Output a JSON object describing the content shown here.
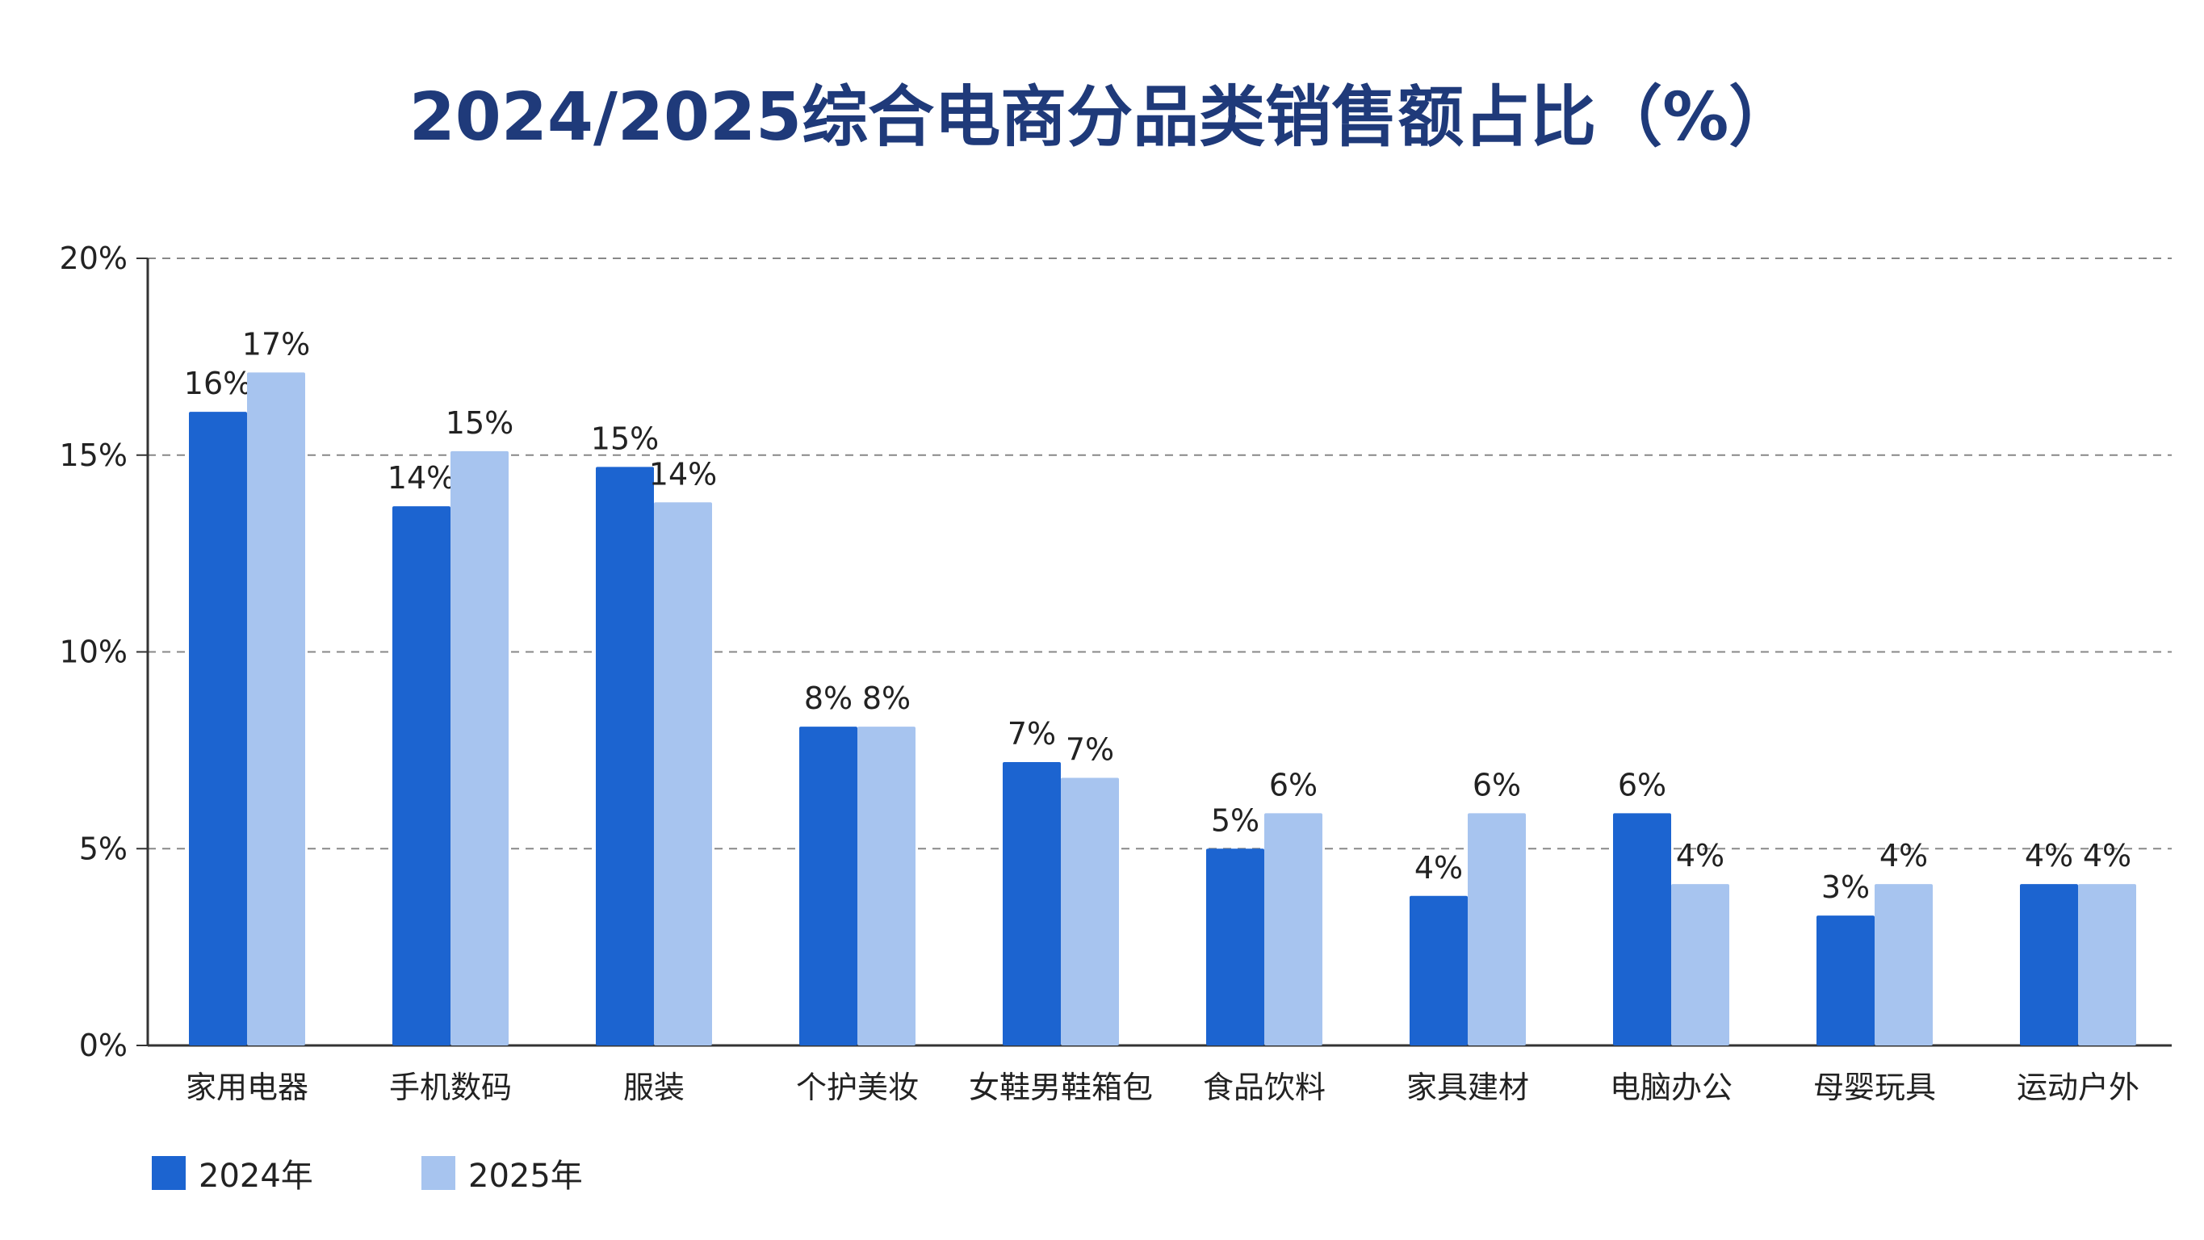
{
  "chart_data": {
    "type": "bar",
    "title": "2024/2025综合电商分品类销售额占比（%）",
    "categories": [
      "家用电器",
      "手机数码",
      "服装",
      "个护美妆",
      "女鞋男鞋箱包",
      "食品饮料",
      "家具建材",
      "电脑办公",
      "母婴玩具",
      "运动户外"
    ],
    "series": [
      {
        "name": "2024年",
        "color": "#1c64d0",
        "values": [
          16.1,
          13.7,
          14.7,
          8.1,
          7.2,
          5.0,
          3.8,
          5.9,
          3.3,
          4.1
        ],
        "labels": [
          "16%",
          "14%",
          "15%",
          "8%",
          "7%",
          "5%",
          "4%",
          "6%",
          "3%",
          "4%"
        ]
      },
      {
        "name": "2025年",
        "color": "#a7c4ef",
        "values": [
          17.1,
          15.1,
          13.8,
          8.1,
          6.8,
          5.9,
          5.9,
          4.1,
          4.1,
          4.1
        ],
        "labels": [
          "17%",
          "15%",
          "14%",
          "8%",
          "7%",
          "6%",
          "6%",
          "4%",
          "4%",
          "4%"
        ]
      }
    ],
    "ylim": [
      0,
      20
    ],
    "yticks": [
      0,
      5,
      10,
      15,
      20
    ],
    "ytick_labels": [
      "0%",
      "5%",
      "10%",
      "15%",
      "20%"
    ],
    "grid": "dashed horizontal",
    "legend": "bottom-left",
    "xlabel": "",
    "ylabel": ""
  }
}
